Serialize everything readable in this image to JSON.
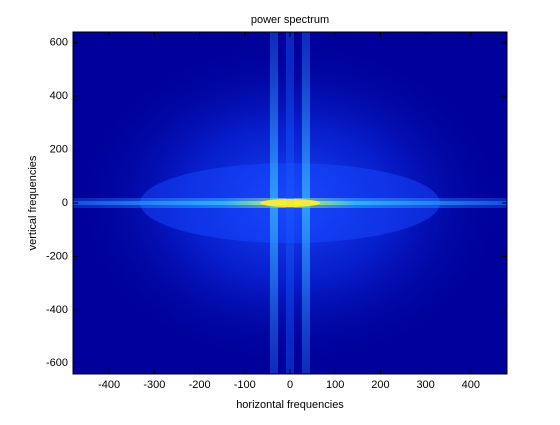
{
  "chart_data": {
    "type": "image",
    "title": "power spectrum",
    "x_label": "horizontal frequencies",
    "y_label": "vertical frequencies",
    "xlim": [
      -480,
      480
    ],
    "ylim": [
      -640,
      640
    ],
    "xticks": [
      -400,
      -300,
      -200,
      -100,
      0,
      100,
      200,
      300,
      400
    ],
    "yticks": [
      -600,
      -400,
      -200,
      0,
      200,
      400,
      600
    ],
    "colormap": "jet"
  }
}
